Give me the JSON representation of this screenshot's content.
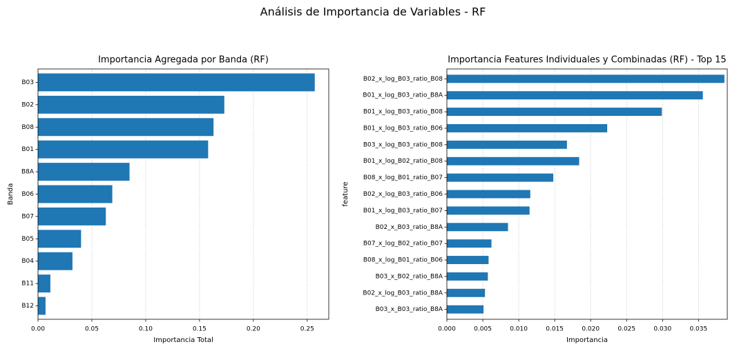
{
  "title": "Análisis de Importancia de Variables - RF",
  "chart_data": [
    {
      "type": "bar",
      "orientation": "horizontal",
      "title": "Importancia Agregada por Banda (RF)",
      "xlabel": "Importancia Total",
      "ylabel": "Banda",
      "categories": [
        "B03",
        "B02",
        "B08",
        "B01",
        "B8A",
        "B06",
        "B07",
        "B05",
        "B04",
        "B11",
        "B12"
      ],
      "values": [
        0.257,
        0.173,
        0.163,
        0.158,
        0.085,
        0.069,
        0.063,
        0.04,
        0.032,
        0.0115,
        0.007
      ],
      "color": "#1f77b4",
      "xlim": [
        0,
        0.27
      ],
      "xticks": [
        {
          "value": 0,
          "label": "0.00"
        },
        0.05,
        {
          "value": 0.1,
          "label": "0.10"
        },
        0.15,
        {
          "value": 0.2,
          "label": "0.20"
        },
        0.25
      ],
      "grid": true
    },
    {
      "type": "bar",
      "orientation": "horizontal",
      "title": "Importancia Features Individuales y Combinadas (RF) - Top 15",
      "xlabel": "Importancia",
      "ylabel": "feature",
      "categories": [
        "B02_x_log_B03_ratio_B08",
        "B01_x_log_B03_ratio_B8A",
        "B01_x_log_B03_ratio_B08",
        "B01_x_log_B03_ratio_B06",
        "B03_x_log_B03_ratio_B08",
        "B01_x_log_B02_ratio_B08",
        "B08_x_log_B01_ratio_B07",
        "B02_x_log_B03_ratio_B06",
        "B01_x_log_B03_ratio_B07",
        "B02_x_B03_ratio_B8A",
        "B07_x_log_B02_ratio_B07",
        "B08_x_log_B01_ratio_B06",
        "B03_x_B02_ratio_B8A",
        "B02_x_log_B03_ratio_B8A",
        "B03_x_B03_ratio_B8A"
      ],
      "values": [
        0.0386,
        0.0356,
        0.0299,
        0.0223,
        0.0167,
        0.0184,
        0.0148,
        0.0116,
        0.0115,
        0.0085,
        0.0062,
        0.0058,
        0.0057,
        0.0053,
        0.0051
      ],
      "color": "#1f77b4",
      "xlim": [
        0,
        0.039
      ],
      "xticks": [
        {
          "value": 0,
          "label": "0.000"
        },
        0.005,
        {
          "value": 0.01,
          "label": "0.010"
        },
        0.015,
        {
          "value": 0.02,
          "label": "0.020"
        },
        0.025,
        {
          "value": 0.03,
          "label": "0.030"
        },
        0.035
      ],
      "grid": true
    }
  ]
}
